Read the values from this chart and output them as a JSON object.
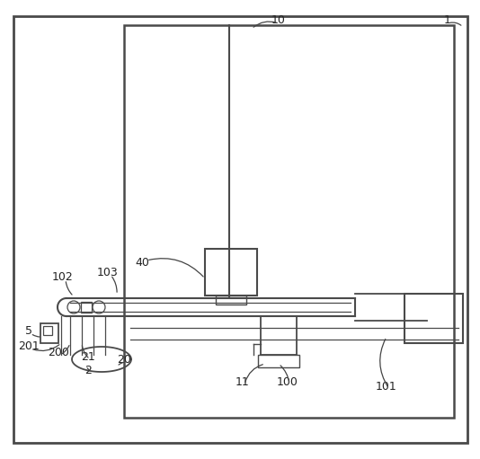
{
  "bg_color": "#ffffff",
  "line_color": "#4a4a4a",
  "line_width": 1.4,
  "thin_line": 0.9,
  "fig_width": 5.34,
  "fig_height": 5.11,
  "dpi": 100
}
